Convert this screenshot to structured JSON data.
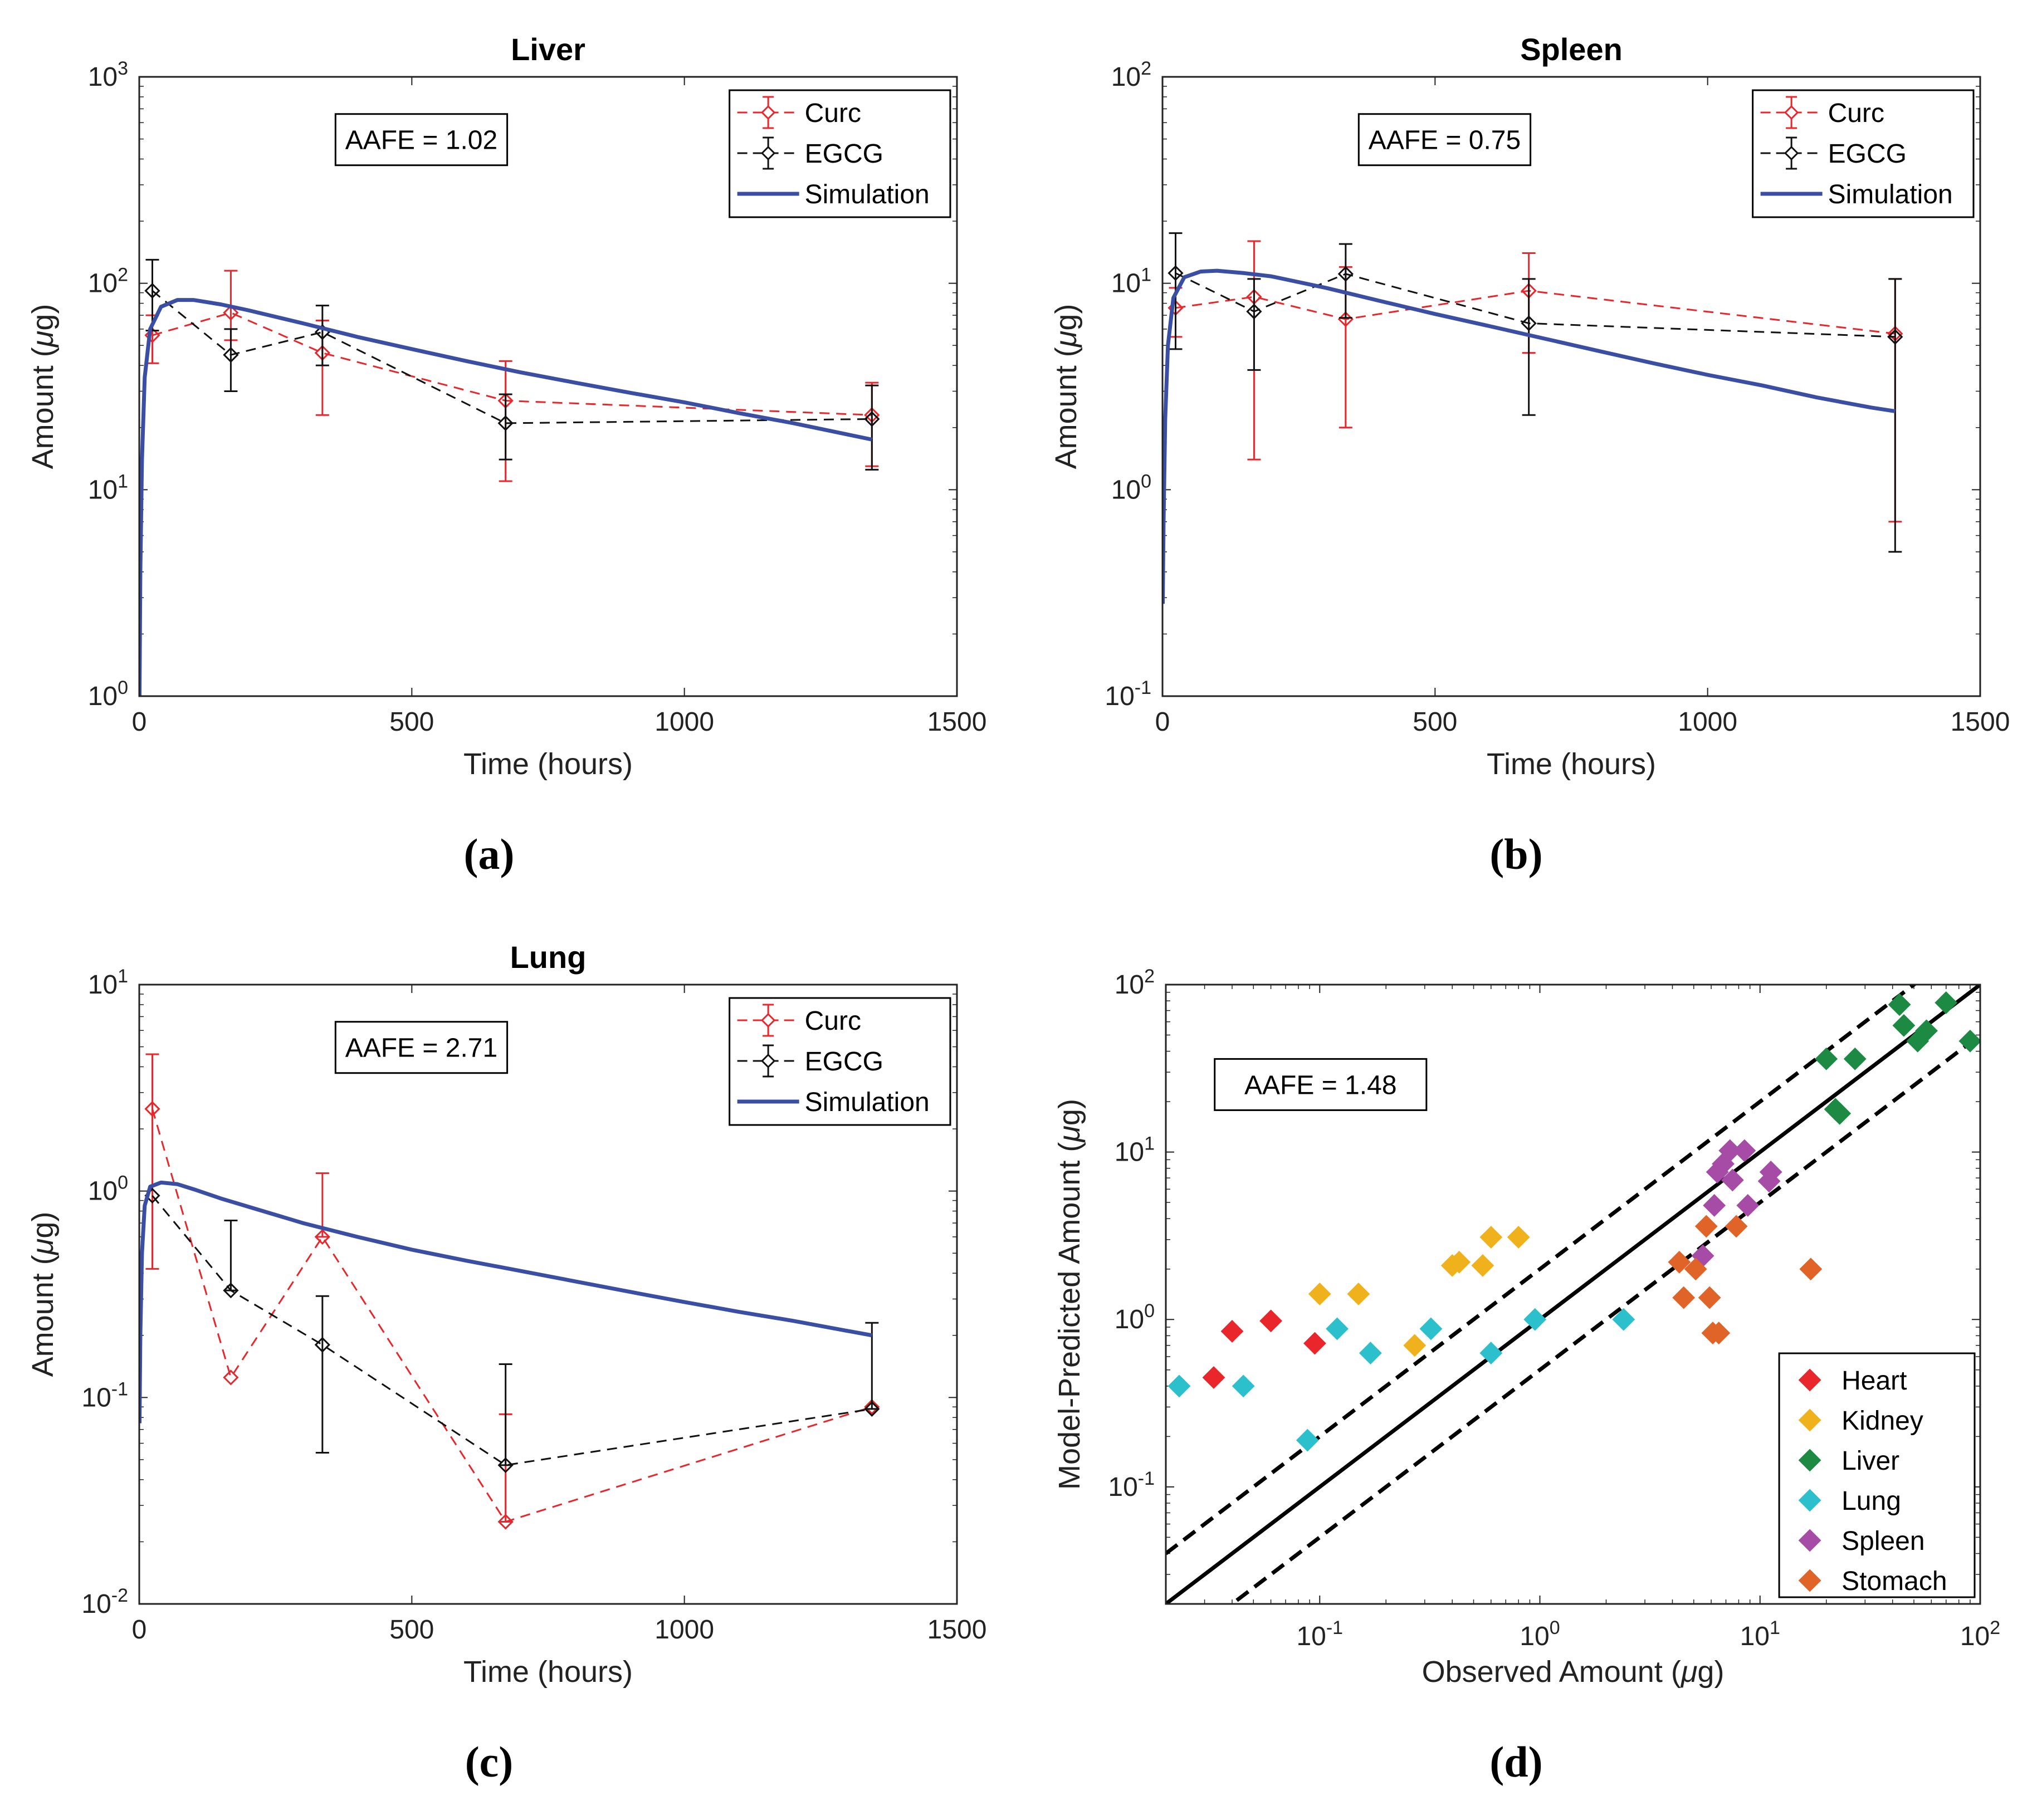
{
  "colors": {
    "curc": "#e8262b",
    "egcg": "#111111",
    "simulation": "#3a4fa3",
    "heart": "#e8262b",
    "kidney": "#f0b21c",
    "liver": "#1d8a43",
    "lung": "#2cc0cc",
    "spleen": "#a64ca6",
    "stomach": "#e06328"
  },
  "chart_data": [
    {
      "id": "a",
      "panel_label": "(a)",
      "type": "line",
      "title": "Liver",
      "xlabel": "Time (hours)",
      "ylabel": "Amount (μg)",
      "xscale": "linear",
      "yscale": "log",
      "xlim": [
        0,
        1500
      ],
      "ylim": [
        1,
        1000
      ],
      "xticks": [
        0,
        500,
        1000,
        1500
      ],
      "xtick_labels": [
        "0",
        "500",
        "1000",
        "1500"
      ],
      "yticks": [
        1,
        10,
        100,
        1000
      ],
      "ytick_base": [
        "10",
        "10",
        "10",
        "10"
      ],
      "ytick_exp": [
        "0",
        "1",
        "2",
        "3"
      ],
      "annotation": "AAFE = 1.02",
      "annotation_position": "upper-left",
      "legend": [
        "Curc",
        "EGCG",
        "Simulation"
      ],
      "legend_position": "top-right",
      "series": [
        {
          "name": "Curc",
          "style": "dashed-diamond",
          "x": [
            24,
            168,
            336,
            672,
            1344
          ],
          "y": [
            56,
            72,
            46,
            27,
            23
          ],
          "err_low": [
            41,
            53,
            23,
            11,
            13
          ],
          "err_high": [
            70,
            115,
            66,
            42,
            33
          ]
        },
        {
          "name": "EGCG",
          "style": "dashed-diamond",
          "x": [
            24,
            168,
            336,
            672,
            1344
          ],
          "y": [
            92,
            45,
            58,
            21,
            22
          ],
          "err_low": [
            59,
            30,
            40,
            14,
            12.5
          ],
          "err_high": [
            130,
            60,
            78,
            29,
            32
          ]
        },
        {
          "name": "Simulation",
          "style": "solid",
          "x": [
            0.5,
            2,
            5,
            10,
            20,
            40,
            70,
            100,
            150,
            200,
            300,
            400,
            500,
            600,
            700,
            800,
            900,
            1000,
            1100,
            1200,
            1300,
            1344
          ],
          "y": [
            1,
            4,
            14,
            35,
            60,
            77,
            83,
            83,
            79,
            74,
            64,
            55,
            48,
            42,
            37,
            33,
            29.5,
            26.5,
            23.5,
            21,
            18.5,
            17.5
          ]
        }
      ]
    },
    {
      "id": "b",
      "panel_label": "(b)",
      "type": "line",
      "title": "Spleen",
      "xlabel": "Time (hours)",
      "ylabel": "Amount (μg)",
      "xscale": "linear",
      "yscale": "log",
      "xlim": [
        0,
        1500
      ],
      "ylim": [
        0.1,
        100
      ],
      "xticks": [
        0,
        500,
        1000,
        1500
      ],
      "xtick_labels": [
        "0",
        "500",
        "1000",
        "1500"
      ],
      "yticks": [
        0.1,
        1,
        10,
        100
      ],
      "ytick_base": [
        "10",
        "10",
        "10",
        "10"
      ],
      "ytick_exp": [
        "-1",
        "0",
        "1",
        "2"
      ],
      "annotation": "AAFE = 0.75",
      "annotation_position": "upper-left",
      "legend": [
        "Curc",
        "EGCG",
        "Simulation"
      ],
      "legend_position": "top-right",
      "series": [
        {
          "name": "Curc",
          "style": "dashed-diamond",
          "x": [
            24,
            168,
            336,
            672,
            1344
          ],
          "y": [
            7.6,
            8.6,
            6.7,
            9.2,
            5.7
          ],
          "err_low": [
            5.5,
            1.4,
            2.0,
            4.6,
            0.7
          ],
          "err_high": [
            9.5,
            16,
            12,
            14,
            10.5
          ]
        },
        {
          "name": "EGCG",
          "style": "dashed-diamond",
          "x": [
            24,
            168,
            336,
            672,
            1344
          ],
          "y": [
            11.2,
            7.3,
            11.1,
            6.4,
            5.5
          ],
          "err_low": [
            4.8,
            3.8,
            6.8,
            2.3,
            0.5
          ],
          "err_high": [
            17.5,
            10.5,
            15.5,
            10.5,
            10.5
          ]
        },
        {
          "name": "Simulation",
          "style": "solid",
          "x": [
            0.5,
            2,
            5,
            10,
            20,
            40,
            70,
            100,
            150,
            200,
            300,
            400,
            500,
            600,
            700,
            800,
            900,
            1000,
            1100,
            1200,
            1300,
            1344
          ],
          "y": [
            0.28,
            0.7,
            2.2,
            5,
            8.5,
            10.7,
            11.4,
            11.5,
            11.2,
            10.8,
            9.5,
            8.2,
            7.1,
            6.2,
            5.4,
            4.7,
            4.1,
            3.6,
            3.2,
            2.8,
            2.5,
            2.4
          ]
        }
      ]
    },
    {
      "id": "c",
      "panel_label": "(c)",
      "type": "line",
      "title": "Lung",
      "xlabel": "Time (hours)",
      "ylabel": "Amount (μg)",
      "xscale": "linear",
      "yscale": "log",
      "xlim": [
        0,
        1500
      ],
      "ylim": [
        0.01,
        10
      ],
      "xticks": [
        0,
        500,
        1000,
        1500
      ],
      "xtick_labels": [
        "0",
        "500",
        "1000",
        "1500"
      ],
      "yticks": [
        0.01,
        0.1,
        1,
        10
      ],
      "ytick_base": [
        "10",
        "10",
        "10",
        "10"
      ],
      "ytick_exp": [
        "-2",
        "-1",
        "0",
        "1"
      ],
      "annotation": "AAFE = 2.71",
      "annotation_position": "upper-left",
      "legend": [
        "Curc",
        "EGCG",
        "Simulation"
      ],
      "legend_position": "top-right",
      "series": [
        {
          "name": "Curc",
          "style": "dashed-diamond",
          "x": [
            24,
            168,
            336,
            672,
            1344
          ],
          "y": [
            2.5,
            0.125,
            0.6,
            0.025,
            0.09
          ],
          "err_low": [
            0.42,
            0.125,
            0.6,
            0.025,
            0.09
          ],
          "err_high": [
            4.6,
            0.125,
            1.22,
            0.083,
            0.09
          ]
        },
        {
          "name": "EGCG",
          "style": "dashed-diamond",
          "x": [
            24,
            168,
            336,
            672,
            1344
          ],
          "y": [
            0.95,
            0.33,
            0.18,
            0.047,
            0.088
          ],
          "err_low": [
            0.95,
            0.33,
            0.054,
            0.047,
            0.088
          ],
          "err_high": [
            0.95,
            0.72,
            0.31,
            0.145,
            0.23
          ]
        },
        {
          "name": "Simulation",
          "style": "solid",
          "x": [
            0.5,
            2,
            5,
            10,
            20,
            40,
            70,
            100,
            150,
            200,
            300,
            400,
            500,
            600,
            700,
            800,
            900,
            1000,
            1100,
            1200,
            1300,
            1344
          ],
          "y": [
            0.075,
            0.2,
            0.5,
            0.85,
            1.05,
            1.1,
            1.08,
            1.02,
            0.92,
            0.84,
            0.7,
            0.6,
            0.52,
            0.46,
            0.41,
            0.365,
            0.325,
            0.29,
            0.26,
            0.235,
            0.21,
            0.2
          ]
        }
      ]
    },
    {
      "id": "d",
      "panel_label": "(d)",
      "type": "scatter",
      "title": "",
      "xlabel": "Observed Amount (μg)",
      "ylabel": "Model-Predicted Amount (μg)",
      "xscale": "log",
      "yscale": "log",
      "xlim": [
        0.02,
        100
      ],
      "ylim": [
        0.02,
        100
      ],
      "xticks": [
        0.1,
        1,
        10,
        100
      ],
      "xtick_base": [
        "10",
        "10",
        "10",
        "10"
      ],
      "xtick_exp": [
        "-1",
        "0",
        "1",
        "2"
      ],
      "yticks": [
        0.1,
        1,
        10,
        100
      ],
      "ytick_base": [
        "10",
        "10",
        "10",
        "10"
      ],
      "ytick_exp": [
        "-1",
        "0",
        "1",
        "2"
      ],
      "annotation": "AAFE = 1.48",
      "annotation_position": "upper-left",
      "reference_lines": [
        {
          "name": "identity",
          "factor": 1,
          "style": "solid"
        },
        {
          "name": "upper-2-fold",
          "factor": 2,
          "style": "dashed"
        },
        {
          "name": "lower-2-fold",
          "factor": 0.5,
          "style": "dashed"
        }
      ],
      "legend": [
        "Heart",
        "Kidney",
        "Liver",
        "Lung",
        "Spleen",
        "Stomach"
      ],
      "legend_position": "bottom-right",
      "series": [
        {
          "name": "Heart",
          "x": [
            0.033,
            0.04,
            0.06,
            0.095
          ],
          "y": [
            0.45,
            0.85,
            0.98,
            0.72
          ]
        },
        {
          "name": "Kidney",
          "x": [
            0.1,
            0.15,
            0.27,
            0.4,
            0.43,
            0.55,
            0.6,
            0.8
          ],
          "y": [
            1.42,
            1.42,
            0.7,
            2.1,
            2.2,
            2.1,
            3.1,
            3.1
          ]
        },
        {
          "name": "Liver",
          "x": [
            20,
            22,
            23,
            27,
            43,
            45,
            52,
            57,
            70,
            90
          ],
          "y": [
            36,
            18,
            17,
            36,
            76,
            57,
            46,
            53,
            78,
            46
          ]
        },
        {
          "name": "Lung",
          "x": [
            0.023,
            0.045,
            0.088,
            0.12,
            0.17,
            0.32,
            0.6,
            0.95,
            2.4
          ],
          "y": [
            0.4,
            0.4,
            0.19,
            0.88,
            0.63,
            0.88,
            0.63,
            1.0,
            1.0
          ]
        },
        {
          "name": "Spleen",
          "x": [
            5.5,
            6.2,
            6.4,
            6.8,
            7.3,
            7.5,
            8.5,
            8.8,
            11,
            11.2
          ],
          "y": [
            2.4,
            4.8,
            7.6,
            8.5,
            10.2,
            6.8,
            10.2,
            4.8,
            6.7,
            7.6
          ]
        },
        {
          "name": "Stomach",
          "x": [
            4.3,
            4.5,
            5.1,
            5.7,
            5.9,
            6.1,
            6.5,
            7.8,
            17
          ],
          "y": [
            2.2,
            1.35,
            2.0,
            3.6,
            1.35,
            0.83,
            0.83,
            3.6,
            2.0
          ]
        }
      ]
    }
  ]
}
